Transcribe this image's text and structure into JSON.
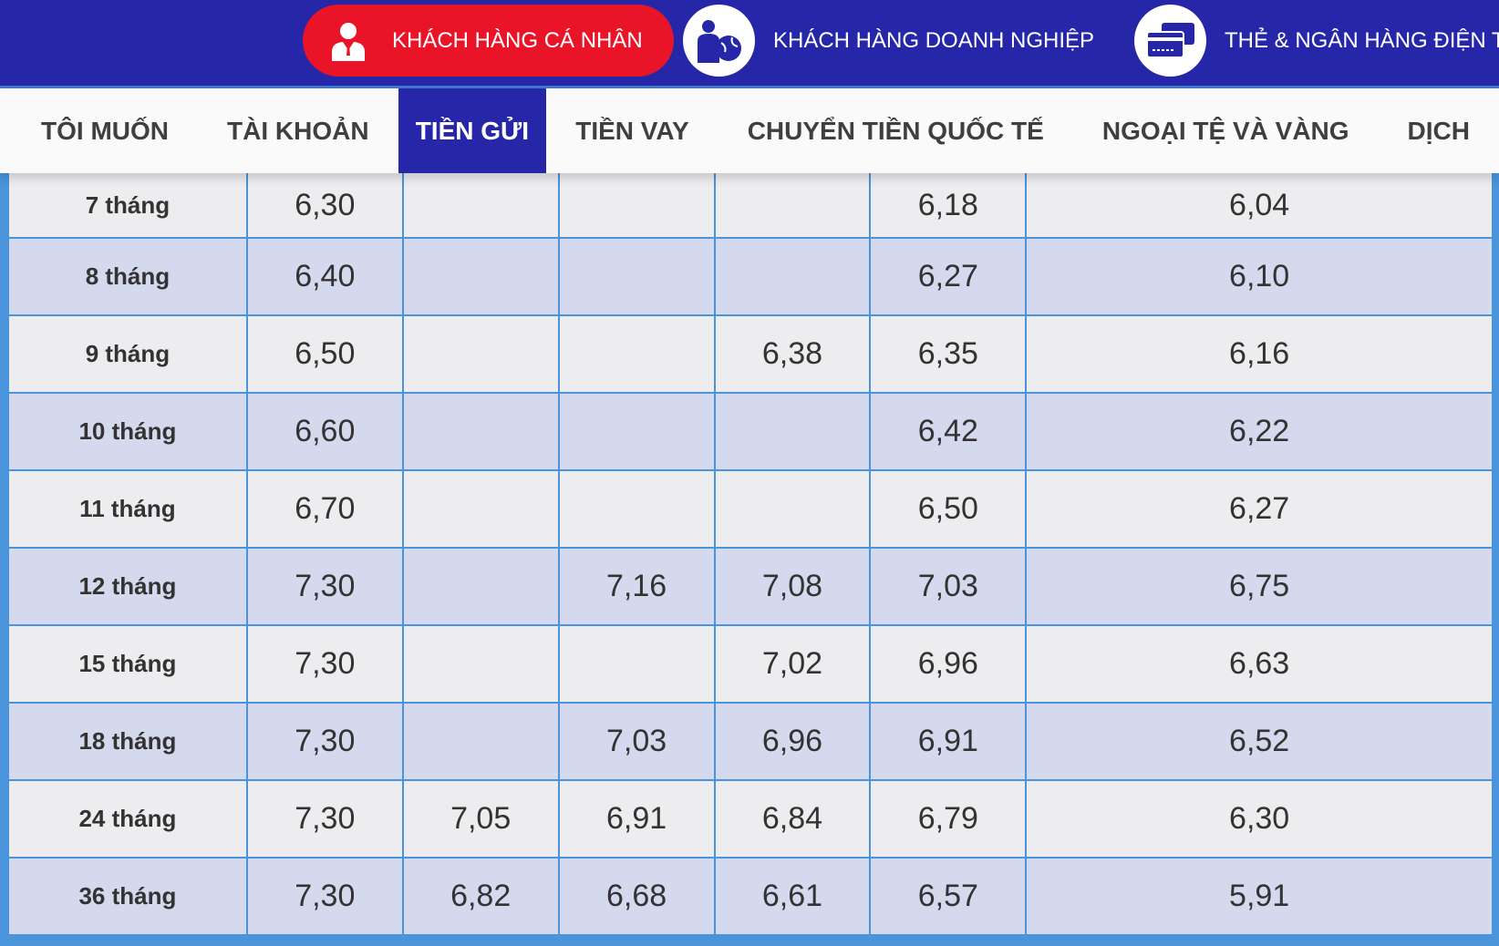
{
  "header": {
    "segments": [
      {
        "label": "KHÁCH HÀNG CÁ NHÂN",
        "icon": "person-icon",
        "active": true
      },
      {
        "label": "KHÁCH HÀNG DOANH NGHIỆP",
        "icon": "business-globe-icon",
        "active": false
      },
      {
        "label": "THẺ & NGÂN HÀNG ĐIỆN T",
        "icon": "cards-icon",
        "active": false
      }
    ],
    "colors": {
      "bar": "#2526a8",
      "active": "#ea1429"
    }
  },
  "nav": {
    "tabs": [
      "TÔI MUỐN",
      "TÀI KHOẢN",
      "TIỀN GỬI",
      "TIỀN VAY",
      "CHUYỂN TIỀN QUỐC TẾ",
      "NGOẠI TỆ VÀ VÀNG",
      "DỊCH"
    ],
    "active": "TIỀN GỬI"
  },
  "table": {
    "rows": [
      [
        "7 tháng",
        "6,30",
        "",
        "",
        "",
        "6,18",
        "6,04"
      ],
      [
        "8 tháng",
        "6,40",
        "",
        "",
        "",
        "6,27",
        "6,10"
      ],
      [
        "9 tháng",
        "6,50",
        "",
        "",
        "6,38",
        "6,35",
        "6,16"
      ],
      [
        "10 tháng",
        "6,60",
        "",
        "",
        "",
        "6,42",
        "6,22"
      ],
      [
        "11 tháng",
        "6,70",
        "",
        "",
        "",
        "6,50",
        "6,27"
      ],
      [
        "12 tháng",
        "7,30",
        "",
        "7,16",
        "7,08",
        "7,03",
        "6,75"
      ],
      [
        "15 tháng",
        "7,30",
        "",
        "",
        "7,02",
        "6,96",
        "6,63"
      ],
      [
        "18 tháng",
        "7,30",
        "",
        "7,03",
        "6,96",
        "6,91",
        "6,52"
      ],
      [
        "24 tháng",
        "7,30",
        "7,05",
        "6,91",
        "6,84",
        "6,79",
        "6,30"
      ],
      [
        "36 tháng",
        "7,30",
        "6,82",
        "6,68",
        "6,61",
        "6,57",
        "5,91"
      ]
    ]
  }
}
